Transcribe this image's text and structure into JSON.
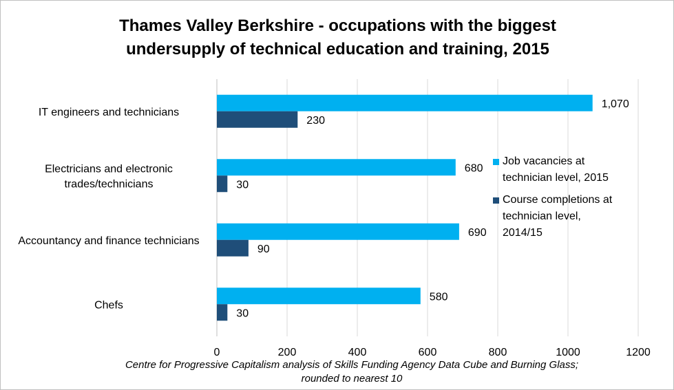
{
  "chart_data": {
    "type": "bar",
    "orientation": "horizontal",
    "title_lines": [
      "Thames Valley Berkshire - occupations with the biggest",
      "undersupply of technical education and training,  2015"
    ],
    "categories": [
      "IT engineers and technicians",
      "Electricians and electronic trades/technicians",
      "Accountancy and finance technicians",
      "Chefs"
    ],
    "category_label_lines": [
      [
        "IT engineers and technicians"
      ],
      [
        "Electricians and electronic",
        "trades/technicians"
      ],
      [
        "Accountancy and finance technicians"
      ],
      [
        "Chefs"
      ]
    ],
    "series": [
      {
        "name": "Job vacancies at\ntechnician level, 2015",
        "color": "#00b0f0",
        "values": [
          1070,
          680,
          690,
          580
        ],
        "value_labels": [
          "1,070",
          "680",
          "690",
          "580"
        ]
      },
      {
        "name": "Course completions at\ntechnician level,\n2014/15",
        "color": "#1f4e79",
        "values": [
          230,
          30,
          90,
          30
        ],
        "value_labels": [
          "230",
          "30",
          "90",
          "30"
        ]
      }
    ],
    "xlim": [
      0,
      1200
    ],
    "xticks": [
      0,
      200,
      400,
      600,
      800,
      1000,
      1200
    ],
    "xtick_labels": [
      "0",
      "200",
      "400",
      "600",
      "800",
      "1000",
      "1200"
    ],
    "grid": "vertical",
    "legend_position": "right"
  },
  "source_lines": [
    "Centre for Progressive Capitalism  analysis of Skills Funding Agency Data Cube and Burning Glass;",
    "rounded to nearest 10"
  ]
}
